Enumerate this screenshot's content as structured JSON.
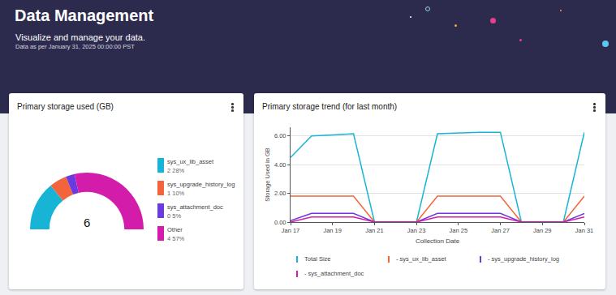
{
  "header": {
    "title": "Data Management",
    "subtitle": "Visualize and manage your data.",
    "note": "Data as per January 31, 2025 00:00:00 PST"
  },
  "chart_data": [
    {
      "type": "pie",
      "title": "Primary storage used (GB)",
      "categories": [
        "sys_ux_lib_asset",
        "sys_upgrade_history_log",
        "sys_attachment_doc",
        "Other"
      ],
      "values": [
        2,
        1,
        0,
        4
      ],
      "percents": [
        28,
        10,
        5,
        57
      ],
      "value_labels": [
        "2 28%",
        "1 10%",
        "0 5%",
        "4 57%"
      ],
      "colors": [
        "#18b4d6",
        "#f4643c",
        "#6a3be0",
        "#d41caa"
      ],
      "total": 6,
      "legend": "right"
    },
    {
      "type": "line",
      "title": "Primary storage trend (for last month)",
      "x_label": "Collection Date",
      "y_label": "Storage Used in GB",
      "categories": [
        "Jan 17",
        null,
        "Jan 19",
        null,
        "Jan 21",
        null,
        "Jan 23",
        null,
        "Jan 25",
        null,
        "Jan 27",
        null,
        "Jan 29",
        null,
        "Jan 31"
      ],
      "series": [
        {
          "name": "Total Size",
          "color": "#18b4d6",
          "values": [
            4.5,
            6.0,
            6.07,
            6.15,
            0,
            0,
            0,
            6.15,
            6.2,
            6.25,
            6.25,
            0,
            0,
            0,
            6.25
          ]
        },
        {
          "name": "- sys_ux_lib_asset",
          "color": "#f4643c",
          "values": [
            1.8,
            1.8,
            1.8,
            1.8,
            0,
            0,
            0,
            1.8,
            1.8,
            1.8,
            1.8,
            0,
            0,
            0,
            1.8
          ]
        },
        {
          "name": "- sys_upgrade_history_log",
          "color": "#6a3be0",
          "values": [
            0.1,
            0.6,
            0.6,
            0.6,
            0,
            0,
            0,
            0.6,
            0.6,
            0.6,
            0.6,
            0,
            0,
            0,
            0.6
          ]
        },
        {
          "name": "- sys_attachment_doc",
          "color": "#d41caa",
          "values": [
            0,
            0.35,
            0.35,
            0.35,
            0,
            0,
            0,
            0.35,
            0.35,
            0.35,
            0.35,
            0,
            0,
            0,
            0.35
          ]
        }
      ],
      "ylim": [
        0,
        6.6
      ],
      "yticks": [
        {
          "value": 0,
          "label": "0.00"
        },
        {
          "value": 2,
          "label": "2.00"
        },
        {
          "value": 4,
          "label": "4.00"
        },
        {
          "value": 6,
          "label": "6.00"
        }
      ],
      "grid": true,
      "legend": "bottom"
    }
  ]
}
